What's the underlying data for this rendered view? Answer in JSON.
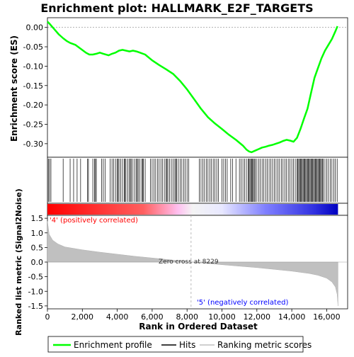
{
  "chart_data": {
    "type": "line",
    "title": "Enrichment plot: HALLMARK_E2F_TARGETS",
    "top_panel": {
      "ylabel": "Enrichment score (ES)",
      "ylim": [
        -0.335,
        0.025
      ],
      "yticks": [
        "0.00",
        "-0.05",
        "-0.10",
        "-0.15",
        "-0.20",
        "-0.25",
        "-0.30"
      ],
      "ytick_values": [
        0.0,
        -0.05,
        -0.1,
        -0.15,
        -0.2,
        -0.25,
        -0.3
      ],
      "series": [
        {
          "name": "Enrichment profile",
          "color": "#00ff00",
          "x": [
            0,
            150,
            400,
            650,
            900,
            1100,
            1300,
            1600,
            1900,
            2200,
            2400,
            2600,
            2800,
            3000,
            3200,
            3500,
            3700,
            3900,
            4100,
            4300,
            4500,
            4700,
            4900,
            5100,
            5300,
            5600,
            6000,
            6400,
            6800,
            7200,
            7600,
            8000,
            8400,
            8800,
            9200,
            9600,
            10000,
            10400,
            10800,
            11200,
            11400,
            11550,
            11700,
            11900,
            12100,
            12300,
            12500,
            12700,
            12900,
            13100,
            13300,
            13500,
            13700,
            13900,
            14100,
            14300,
            14500,
            14700,
            14900,
            15100,
            15300,
            15500,
            15700,
            15900,
            16100,
            16300,
            16500,
            16620
          ],
          "y": [
            0.015,
            0.008,
            -0.005,
            -0.018,
            -0.028,
            -0.035,
            -0.04,
            -0.045,
            -0.055,
            -0.065,
            -0.07,
            -0.07,
            -0.068,
            -0.065,
            -0.068,
            -0.072,
            -0.068,
            -0.065,
            -0.06,
            -0.058,
            -0.06,
            -0.062,
            -0.06,
            -0.062,
            -0.065,
            -0.07,
            -0.085,
            -0.097,
            -0.108,
            -0.12,
            -0.138,
            -0.16,
            -0.185,
            -0.21,
            -0.232,
            -0.248,
            -0.262,
            -0.277,
            -0.29,
            -0.305,
            -0.315,
            -0.32,
            -0.322,
            -0.318,
            -0.314,
            -0.31,
            -0.308,
            -0.305,
            -0.303,
            -0.3,
            -0.297,
            -0.293,
            -0.29,
            -0.292,
            -0.295,
            -0.285,
            -0.262,
            -0.235,
            -0.21,
            -0.17,
            -0.13,
            -0.105,
            -0.08,
            -0.06,
            -0.045,
            -0.03,
            -0.01,
            0.003
          ]
        }
      ],
      "hits_legend": "Hits"
    },
    "hits": {
      "positions": [
        50,
        120,
        200,
        900,
        1300,
        1500,
        1700,
        1900,
        2300,
        2350,
        2600,
        2700,
        2750,
        2800,
        3100,
        3200,
        3300,
        3600,
        3700,
        3800,
        3900,
        4000,
        4050,
        4100,
        4200,
        4300,
        4400,
        4450,
        4500,
        4600,
        4700,
        4750,
        4800,
        4900,
        5000,
        5100,
        5150,
        5200,
        5300,
        5400,
        5450,
        5500,
        5600,
        5900,
        6000,
        6100,
        6200,
        6300,
        6400,
        6500,
        6600,
        6700,
        6800,
        6850,
        6900,
        7000,
        7100,
        7200,
        7300,
        7350,
        7400,
        7500,
        7600,
        7700,
        7800,
        7900,
        8000,
        8100,
        8700,
        8800,
        8900,
        9000,
        9100,
        9200,
        9300,
        9400,
        9500,
        9600,
        9700,
        9800,
        10000,
        10100,
        10200,
        10300,
        10500,
        10600,
        10800,
        11000,
        11100,
        11200,
        11300,
        11400,
        11500,
        11550,
        11600,
        11650,
        11700,
        11750,
        11800,
        11850,
        11900,
        12000,
        12100,
        12200,
        12300,
        12400,
        12500,
        12600,
        12700,
        12800,
        12900,
        13000,
        13100,
        13200,
        13300,
        13400,
        13500,
        13600,
        13700,
        13800,
        13900,
        14000,
        14100,
        14200,
        14300,
        14350,
        14400,
        14450,
        14500,
        14550,
        14600,
        14650,
        14700,
        14750,
        14800,
        14850,
        14900,
        14950,
        15000,
        15050,
        15100,
        15150,
        15200,
        15250,
        15300,
        15350,
        15400,
        15450,
        15500,
        15550,
        15600,
        15650,
        15700,
        15750,
        15800,
        15900,
        16000,
        16100,
        16200,
        16300,
        16400,
        16500,
        16600
      ]
    },
    "bottom_panel": {
      "ylabel": "Ranked list metric (Signal2Noise)",
      "xlabel": "Rank in Ordered Dataset",
      "ylim": [
        -1.6,
        1.6
      ],
      "yticks": [
        "1.5",
        "1.0",
        "0.5",
        "0.0",
        "-0.5",
        "-1.0",
        "-1.5"
      ],
      "ytick_values": [
        1.5,
        1.0,
        0.5,
        0.0,
        -0.5,
        -1.0,
        -1.5
      ],
      "xlim": [
        0,
        17200
      ],
      "xticks": [
        "0",
        "2,000",
        "4,000",
        "6,000",
        "8,000",
        "10,000",
        "12,000",
        "14,000",
        "16,000"
      ],
      "xtick_values": [
        0,
        2000,
        4000,
        6000,
        8000,
        10000,
        12000,
        14000,
        16000
      ],
      "metric_x": [
        0,
        100,
        300,
        600,
        1000,
        2000,
        3000,
        4000,
        5000,
        6000,
        7000,
        8229,
        9000,
        10000,
        11000,
        12000,
        13000,
        14000,
        15000,
        15500,
        16000,
        16300,
        16500,
        16600,
        16650
      ],
      "metric_y": [
        1.4,
        0.95,
        0.75,
        0.62,
        0.52,
        0.42,
        0.34,
        0.27,
        0.2,
        0.14,
        0.08,
        0.0,
        -0.04,
        -0.09,
        -0.14,
        -0.19,
        -0.25,
        -0.31,
        -0.39,
        -0.45,
        -0.55,
        -0.68,
        -0.85,
        -1.1,
        -1.5
      ],
      "zero_cross_label": "Zero cross at 8229",
      "zero_cross_x": 8229,
      "positive_label": "'4' (positively correlated)",
      "negative_label": "'5' (negatively correlated)",
      "positive_color": "#ff0000",
      "negative_color": "#0000ff"
    },
    "n_genes": 16650
  },
  "legend": {
    "enrichment_label": "Enrichment profile",
    "hits_label": "Hits",
    "metric_label": "Ranking metric scores",
    "enrichment_color": "#00ff00",
    "hits_color": "#000000",
    "metric_color": "#c0c0c0"
  }
}
